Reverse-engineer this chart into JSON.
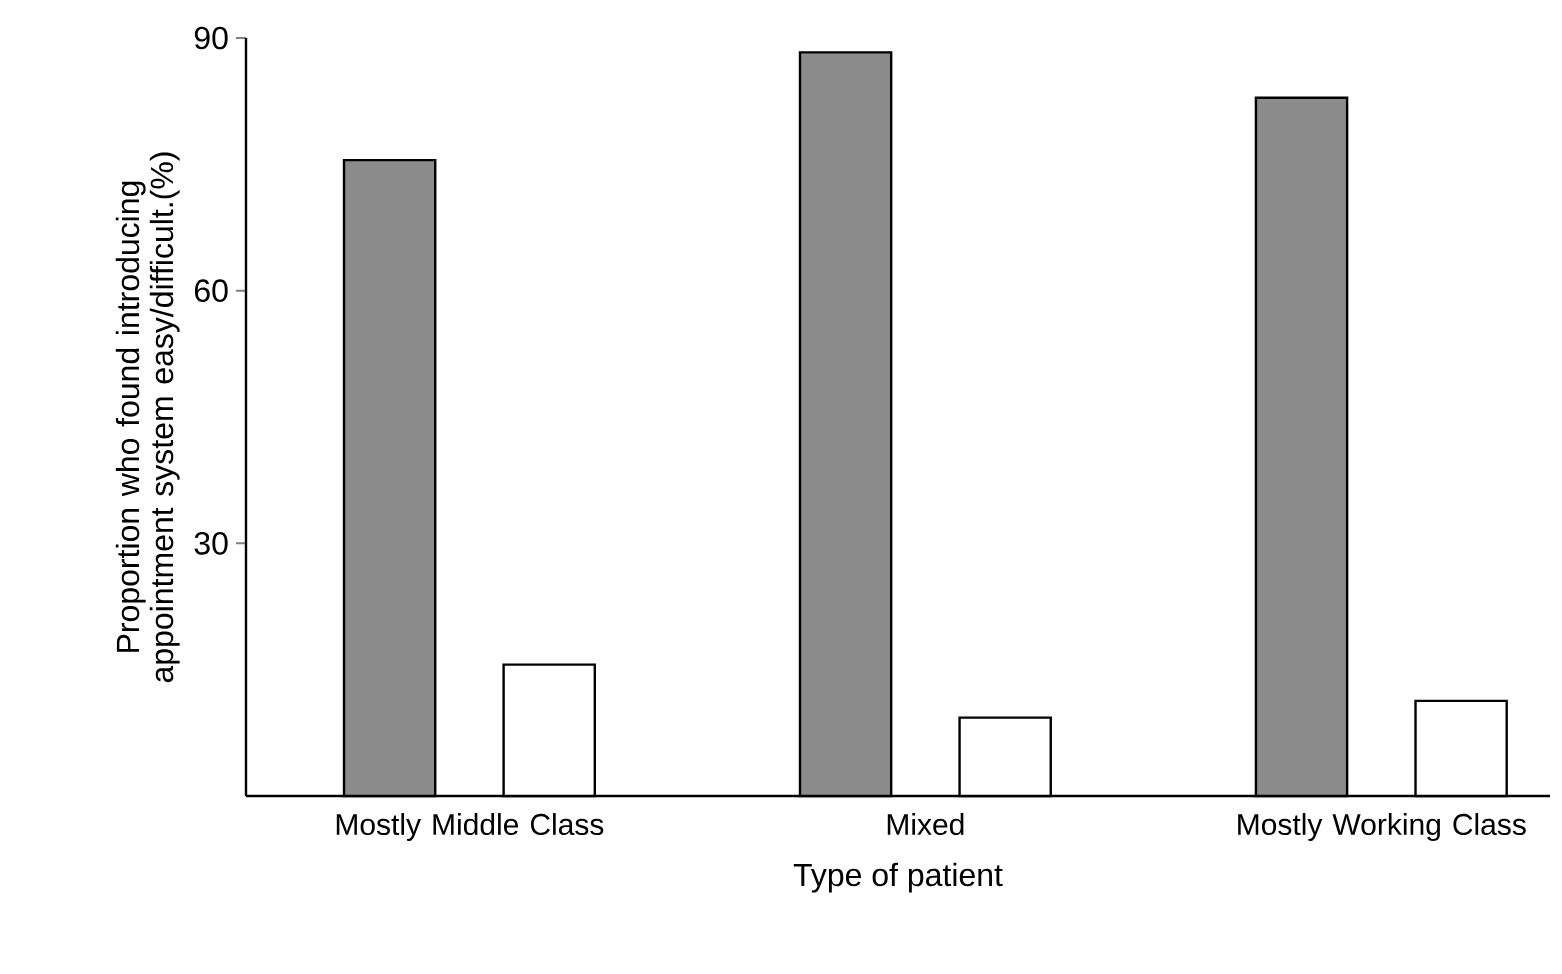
{
  "chart_data": {
    "type": "bar",
    "categories": [
      "Mostly Middle Class",
      "Mixed",
      "Mostly Working Class"
    ],
    "series": [
      {
        "color": "#8c8c8c",
        "values": [
          75.5,
          88.3,
          82.9
        ]
      },
      {
        "color": "#ffffff",
        "values": [
          15.6,
          9.3,
          11.3
        ]
      }
    ],
    "ylim": [
      0,
      90
    ],
    "yticks": [
      30,
      60,
      90
    ],
    "xlabel": "Type of patient",
    "ylabel": "Proportion who found introducing appointment system easy/difficult.(%)",
    "grid": false
  }
}
